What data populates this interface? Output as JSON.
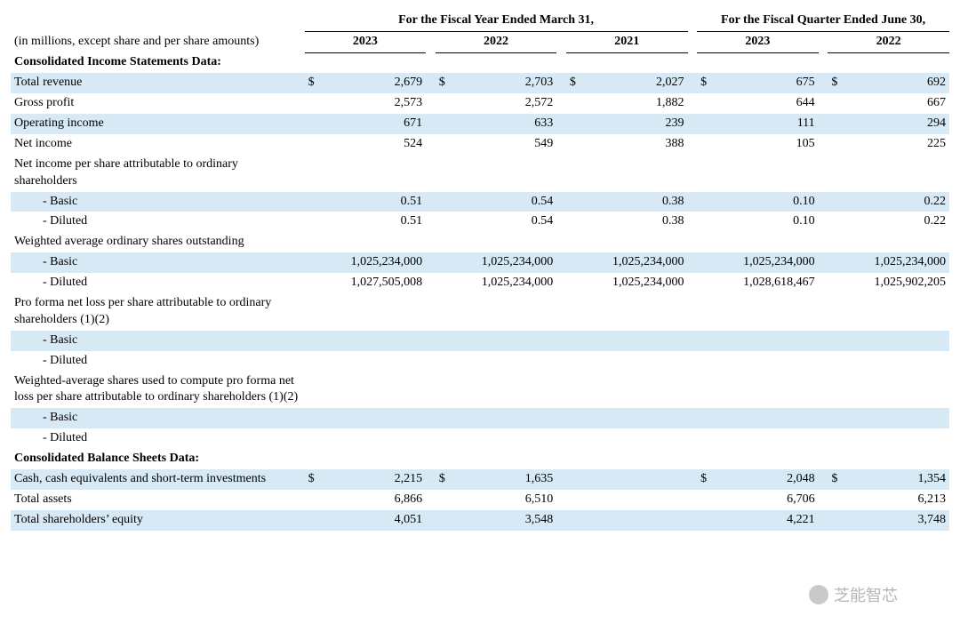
{
  "colors": {
    "row_shade": "#d6e9f4",
    "text": "#000000",
    "background": "#ffffff",
    "border": "#000000"
  },
  "typography": {
    "font_family": "Times New Roman",
    "base_fontsize_pt": 11,
    "header_bold": true
  },
  "header": {
    "note": "(in millions, except share and per share amounts)",
    "group_year": {
      "label": "For the Fiscal Year Ended March 31,",
      "years": [
        "2023",
        "2022",
        "2021"
      ]
    },
    "group_quarter": {
      "label": "For the Fiscal Quarter Ended June 30,",
      "years": [
        "2023",
        "2022"
      ]
    }
  },
  "currency_symbol": "$",
  "sections": {
    "income": {
      "title": "Consolidated Income Statements Data:",
      "rows": [
        {
          "label": "Total revenue",
          "show_currency": true,
          "values": [
            "2,679",
            "2,703",
            "2,027",
            "675",
            "692"
          ]
        },
        {
          "label": "Gross profit",
          "values": [
            "2,573",
            "2,572",
            "1,882",
            "644",
            "667"
          ]
        },
        {
          "label": "Operating income",
          "values": [
            "671",
            "633",
            "239",
            "111",
            "294"
          ]
        },
        {
          "label": "Net income",
          "values": [
            "524",
            "549",
            "388",
            "105",
            "225"
          ]
        },
        {
          "label": "Net income per share attributable to ordinary shareholders",
          "values": [
            "",
            "",
            "",
            "",
            ""
          ],
          "no_shade": true
        },
        {
          "label": "- Basic",
          "indent": 2,
          "values": [
            "0.51",
            "0.54",
            "0.38",
            "0.10",
            "0.22"
          ]
        },
        {
          "label": "- Diluted",
          "indent": 2,
          "values": [
            "0.51",
            "0.54",
            "0.38",
            "0.10",
            "0.22"
          ]
        },
        {
          "label": "Weighted average ordinary shares outstanding",
          "values": [
            "",
            "",
            "",
            "",
            ""
          ],
          "no_shade": true
        },
        {
          "label": "- Basic",
          "indent": 2,
          "values": [
            "1,025,234,000",
            "1,025,234,000",
            "1,025,234,000",
            "1,025,234,000",
            "1,025,234,000"
          ]
        },
        {
          "label": "- Diluted",
          "indent": 2,
          "values": [
            "1,027,505,008",
            "1,025,234,000",
            "1,025,234,000",
            "1,028,618,467",
            "1,025,902,205"
          ]
        },
        {
          "label": "Pro forma net loss per share attributable to ordinary shareholders (1)(2)",
          "values": [
            "",
            "",
            "",
            "",
            ""
          ],
          "no_shade": true
        },
        {
          "label": "- Basic",
          "indent": 2,
          "values": [
            "",
            "",
            "",
            "",
            ""
          ]
        },
        {
          "label": "- Diluted",
          "indent": 2,
          "values": [
            "",
            "",
            "",
            "",
            ""
          ]
        },
        {
          "label": "Weighted-average shares used to compute pro forma net loss per share attributable to ordinary shareholders (1)(2)",
          "values": [
            "",
            "",
            "",
            "",
            ""
          ],
          "no_shade": true
        },
        {
          "label": "- Basic",
          "indent": 2,
          "values": [
            "",
            "",
            "",
            "",
            ""
          ]
        },
        {
          "label": "- Diluted",
          "indent": 2,
          "values": [
            "",
            "",
            "",
            "",
            ""
          ]
        }
      ]
    },
    "balance": {
      "title": "Consolidated Balance Sheets Data:",
      "rows": [
        {
          "label": "Cash, cash equivalents and short-term investments",
          "show_currency": true,
          "values": [
            "2,215",
            "1,635",
            "",
            "2,048",
            "1,354"
          ]
        },
        {
          "label": "Total assets",
          "values": [
            "6,866",
            "6,510",
            "",
            "6,706",
            "6,213"
          ]
        },
        {
          "label": "Total shareholders’ equity",
          "values": [
            "4,051",
            "3,548",
            "",
            "4,221",
            "3,748"
          ]
        }
      ]
    }
  },
  "watermark": "芝能智芯"
}
